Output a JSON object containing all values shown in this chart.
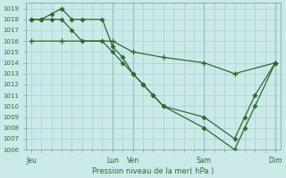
{
  "background_color": "#cce9e9",
  "grid_color": "#aacfcf",
  "line_color": "#2d6a2d",
  "marker_color": "#2d6a2d",
  "xlabel_text": "Pression niveau de la mer( hPa )",
  "ylim": [
    1006,
    1019.5
  ],
  "yticks": [
    1006,
    1007,
    1008,
    1009,
    1010,
    1011,
    1012,
    1013,
    1014,
    1015,
    1016,
    1017,
    1018,
    1019
  ],
  "xtick_labels": [
    "Jeu",
    "Lun",
    "Ven",
    "Sam",
    "Dim"
  ],
  "xtick_positions": [
    0,
    8,
    10,
    17,
    24
  ],
  "vlines": [
    8,
    10,
    17,
    24
  ],
  "series1_x": [
    0,
    1,
    2,
    3,
    4,
    5,
    7,
    8,
    9,
    10,
    11,
    12,
    13,
    17,
    20,
    21,
    22,
    24
  ],
  "series1_y": [
    1018,
    1018,
    1018.5,
    1019,
    1018,
    1018,
    1018,
    1015.5,
    1014.5,
    1013,
    1012,
    1011,
    1010,
    1009,
    1007,
    1009,
    1011,
    1014
  ],
  "series2_x": [
    0,
    1,
    2,
    3,
    4,
    5,
    7,
    8,
    9,
    10,
    11,
    12,
    13,
    17,
    20,
    21,
    22,
    24
  ],
  "series2_y": [
    1018,
    1018,
    1018,
    1018,
    1017,
    1016,
    1016,
    1015,
    1014,
    1013,
    1012,
    1011,
    1010,
    1008,
    1006,
    1008,
    1010,
    1014
  ],
  "series3_x": [
    0,
    3,
    8,
    10,
    13,
    17,
    20,
    24
  ],
  "series3_y": [
    1016,
    1016,
    1016,
    1015,
    1014.5,
    1014,
    1013,
    1014
  ]
}
